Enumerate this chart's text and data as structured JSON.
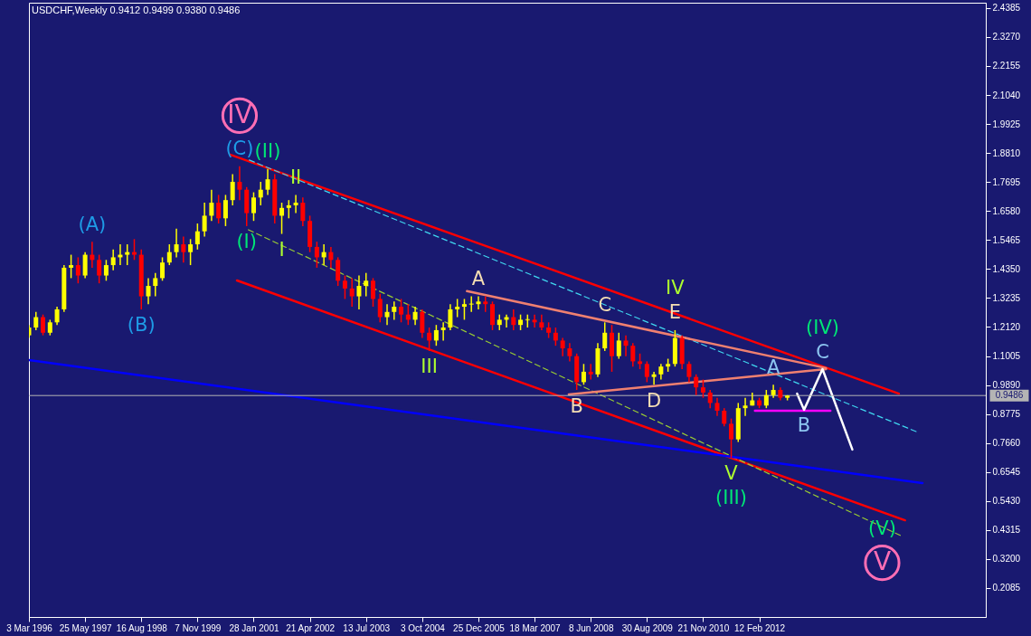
{
  "chart_data": {
    "type": "candlestick",
    "title": "USDCHF,Weekly 0.9412 0.9499 0.9380 0.9486",
    "xlim": [
      "1996-03-03",
      "2017-01-22"
    ],
    "xticks": [
      {
        "value": "1996-03-03",
        "label": "3 Mar 1996"
      },
      {
        "value": "1997-05-25",
        "label": "25 May 1997"
      },
      {
        "value": "1998-08-16",
        "label": "16 Aug 1998"
      },
      {
        "value": "1999-11-07",
        "label": "7 Nov 1999"
      },
      {
        "value": "2001-01-28",
        "label": "28 Jan 2001"
      },
      {
        "value": "2002-04-21",
        "label": "21 Apr 2002"
      },
      {
        "value": "2003-07-13",
        "label": "13 Jul 2003"
      },
      {
        "value": "2004-10-03",
        "label": "3 Oct 2004"
      },
      {
        "value": "2005-12-25",
        "label": "25 Dec 2005"
      },
      {
        "value": "2007-03-18",
        "label": "18 Mar 2007"
      },
      {
        "value": "2008-06-08",
        "label": "8 Jun 2008"
      },
      {
        "value": "2009-08-30",
        "label": "30 Aug 2009"
      },
      {
        "value": "2010-11-21",
        "label": "21 Nov 2010"
      },
      {
        "value": "2012-02-12",
        "label": "12 Feb 2012"
      }
    ],
    "ylim": [
      0.097,
      2.459
    ],
    "yticks": [
      2.4385,
      {
        "value": 2.327,
        "label": "2.3270"
      },
      2.2155,
      {
        "value": 2.104,
        "label": "2.1040"
      },
      1.9925,
      {
        "value": 1.881,
        "label": "1.8810"
      },
      1.7695,
      {
        "value": 1.658,
        "label": "1.6580"
      },
      1.5465,
      {
        "value": 1.435,
        "label": "1.4350"
      },
      1.3235,
      {
        "value": 1.212,
        "label": "1.2120"
      },
      1.1005,
      {
        "value": 0.989,
        "label": "0.9890"
      },
      0.8775,
      {
        "value": 0.766,
        "label": "0.7660"
      },
      0.6545,
      {
        "value": 0.543,
        "label": "0.5430"
      },
      0.4315,
      {
        "value": 0.32,
        "label": "0.3200"
      },
      0.2085
    ],
    "series": [
      {
        "x": [
          "1996-03-03",
          "1996-04-28",
          "1996-06-23",
          "1996-08-18",
          "1996-10-13",
          "1996-12-08",
          "1997-02-02",
          "1997-03-30",
          "1997-05-25",
          "1997-07-20",
          "1997-09-14",
          "1997-11-09",
          "1998-01-04",
          "1998-03-01",
          "1998-04-26",
          "1998-06-21",
          "1998-08-16",
          "1998-10-11",
          "1998-12-06",
          "1999-01-31",
          "1999-03-28",
          "1999-05-23",
          "1999-07-18",
          "1999-09-12",
          "1999-11-07",
          "2000-01-02",
          "2000-02-27",
          "2000-04-23",
          "2000-06-18",
          "2000-08-13",
          "2000-10-08",
          "2000-12-03",
          "2001-01-28",
          "2001-03-25",
          "2001-05-20",
          "2001-07-15",
          "2001-09-09",
          "2001-11-04",
          "2001-12-30",
          "2002-02-24",
          "2002-04-21",
          "2002-06-16",
          "2002-08-11",
          "2002-10-06",
          "2002-12-01",
          "2003-01-26",
          "2003-03-23",
          "2003-05-18",
          "2003-07-13",
          "2003-09-07",
          "2003-11-02",
          "2003-12-28",
          "2004-02-22",
          "2004-04-18",
          "2004-06-13",
          "2004-08-08",
          "2004-10-03",
          "2004-11-28",
          "2005-01-23",
          "2005-03-20",
          "2005-05-15",
          "2005-07-10",
          "2005-09-04",
          "2005-10-30",
          "2005-12-25",
          "2006-02-19",
          "2006-04-16",
          "2006-06-11",
          "2006-08-06",
          "2006-10-01",
          "2006-11-26",
          "2007-01-21",
          "2007-03-18",
          "2007-05-13",
          "2007-07-08",
          "2007-09-02",
          "2007-10-28",
          "2007-12-23",
          "2008-02-17",
          "2008-04-13",
          "2008-06-08",
          "2008-08-03",
          "2008-09-28",
          "2008-11-23",
          "2009-01-18",
          "2009-03-15",
          "2009-05-10",
          "2009-07-05",
          "2009-08-30",
          "2009-10-25",
          "2009-12-20",
          "2010-02-14",
          "2010-04-11",
          "2010-06-06",
          "2010-08-01",
          "2010-09-26",
          "2010-11-21",
          "2011-01-16",
          "2011-03-13",
          "2011-05-08",
          "2011-07-03",
          "2011-08-28",
          "2011-10-23",
          "2011-12-18",
          "2012-02-12",
          "2012-04-08",
          "2012-06-03",
          "2012-07-29",
          "2012-09-23"
        ],
        "ohlc": [
          [
            1.18,
            1.22,
            1.17,
            1.21
          ],
          [
            1.21,
            1.27,
            1.2,
            1.25
          ],
          [
            1.25,
            1.26,
            1.18,
            1.19
          ],
          [
            1.19,
            1.24,
            1.18,
            1.23
          ],
          [
            1.23,
            1.29,
            1.22,
            1.28
          ],
          [
            1.28,
            1.45,
            1.27,
            1.44
          ],
          [
            1.44,
            1.49,
            1.4,
            1.45
          ],
          [
            1.45,
            1.48,
            1.38,
            1.41
          ],
          [
            1.41,
            1.5,
            1.4,
            1.49
          ],
          [
            1.49,
            1.54,
            1.44,
            1.47
          ],
          [
            1.47,
            1.49,
            1.38,
            1.41
          ],
          [
            1.41,
            1.47,
            1.39,
            1.45
          ],
          [
            1.45,
            1.51,
            1.43,
            1.48
          ],
          [
            1.48,
            1.53,
            1.45,
            1.49
          ],
          [
            1.49,
            1.53,
            1.45,
            1.5
          ],
          [
            1.5,
            1.55,
            1.47,
            1.49
          ],
          [
            1.49,
            1.51,
            1.28,
            1.33
          ],
          [
            1.33,
            1.4,
            1.3,
            1.37
          ],
          [
            1.37,
            1.42,
            1.33,
            1.4
          ],
          [
            1.4,
            1.48,
            1.39,
            1.46
          ],
          [
            1.46,
            1.53,
            1.45,
            1.5
          ],
          [
            1.5,
            1.59,
            1.48,
            1.53
          ],
          [
            1.53,
            1.56,
            1.46,
            1.5
          ],
          [
            1.5,
            1.55,
            1.45,
            1.53
          ],
          [
            1.53,
            1.61,
            1.51,
            1.58
          ],
          [
            1.58,
            1.69,
            1.56,
            1.64
          ],
          [
            1.64,
            1.74,
            1.62,
            1.69
          ],
          [
            1.69,
            1.72,
            1.61,
            1.63
          ],
          [
            1.63,
            1.72,
            1.6,
            1.7
          ],
          [
            1.7,
            1.8,
            1.68,
            1.77
          ],
          [
            1.77,
            1.83,
            1.7,
            1.74
          ],
          [
            1.74,
            1.75,
            1.6,
            1.65
          ],
          [
            1.65,
            1.73,
            1.62,
            1.71
          ],
          [
            1.71,
            1.77,
            1.68,
            1.74
          ],
          [
            1.74,
            1.82,
            1.72,
            1.78
          ],
          [
            1.78,
            1.8,
            1.61,
            1.64
          ],
          [
            1.64,
            1.69,
            1.57,
            1.67
          ],
          [
            1.67,
            1.7,
            1.63,
            1.68
          ],
          [
            1.68,
            1.72,
            1.65,
            1.69
          ],
          [
            1.69,
            1.71,
            1.6,
            1.62
          ],
          [
            1.62,
            1.64,
            1.5,
            1.52
          ],
          [
            1.52,
            1.54,
            1.44,
            1.48
          ],
          [
            1.48,
            1.53,
            1.45,
            1.5
          ],
          [
            1.5,
            1.52,
            1.44,
            1.47
          ],
          [
            1.47,
            1.48,
            1.37,
            1.39
          ],
          [
            1.39,
            1.41,
            1.32,
            1.36
          ],
          [
            1.36,
            1.4,
            1.29,
            1.33
          ],
          [
            1.33,
            1.41,
            1.28,
            1.37
          ],
          [
            1.37,
            1.42,
            1.33,
            1.39
          ],
          [
            1.39,
            1.4,
            1.29,
            1.32
          ],
          [
            1.32,
            1.34,
            1.23,
            1.25
          ],
          [
            1.25,
            1.3,
            1.22,
            1.27
          ],
          [
            1.27,
            1.31,
            1.24,
            1.29
          ],
          [
            1.29,
            1.32,
            1.23,
            1.26
          ],
          [
            1.26,
            1.3,
            1.22,
            1.24
          ],
          [
            1.24,
            1.29,
            1.22,
            1.27
          ],
          [
            1.27,
            1.28,
            1.17,
            1.19
          ],
          [
            1.19,
            1.21,
            1.12,
            1.16
          ],
          [
            1.16,
            1.22,
            1.14,
            1.2
          ],
          [
            1.2,
            1.23,
            1.16,
            1.21
          ],
          [
            1.21,
            1.3,
            1.2,
            1.28
          ],
          [
            1.28,
            1.32,
            1.25,
            1.29
          ],
          [
            1.29,
            1.32,
            1.24,
            1.3
          ],
          [
            1.3,
            1.33,
            1.27,
            1.3
          ],
          [
            1.3,
            1.33,
            1.28,
            1.31
          ],
          [
            1.31,
            1.33,
            1.27,
            1.3
          ],
          [
            1.3,
            1.31,
            1.2,
            1.22
          ],
          [
            1.22,
            1.26,
            1.2,
            1.24
          ],
          [
            1.24,
            1.26,
            1.21,
            1.25
          ],
          [
            1.25,
            1.28,
            1.2,
            1.22
          ],
          [
            1.22,
            1.26,
            1.2,
            1.24
          ],
          [
            1.24,
            1.26,
            1.21,
            1.24
          ],
          [
            1.24,
            1.26,
            1.21,
            1.23
          ],
          [
            1.23,
            1.26,
            1.2,
            1.21
          ],
          [
            1.21,
            1.23,
            1.17,
            1.19
          ],
          [
            1.19,
            1.21,
            1.14,
            1.16
          ],
          [
            1.16,
            1.17,
            1.1,
            1.13
          ],
          [
            1.13,
            1.15,
            1.08,
            1.1
          ],
          [
            1.1,
            1.11,
            0.97,
            1.0
          ],
          [
            1.0,
            1.07,
            0.99,
            1.04
          ],
          [
            1.04,
            1.07,
            1.01,
            1.03
          ],
          [
            1.03,
            1.15,
            1.02,
            1.13
          ],
          [
            1.13,
            1.23,
            1.12,
            1.19
          ],
          [
            1.19,
            1.22,
            1.04,
            1.1
          ],
          [
            1.1,
            1.19,
            1.09,
            1.16
          ],
          [
            1.16,
            1.18,
            1.1,
            1.14
          ],
          [
            1.14,
            1.15,
            1.06,
            1.08
          ],
          [
            1.08,
            1.11,
            1.05,
            1.07
          ],
          [
            1.07,
            1.08,
            1.0,
            1.02
          ],
          [
            1.02,
            1.04,
            0.99,
            1.03
          ],
          [
            1.03,
            1.07,
            1.01,
            1.06
          ],
          [
            1.06,
            1.09,
            1.04,
            1.07
          ],
          [
            1.07,
            1.2,
            1.06,
            1.17
          ],
          [
            1.17,
            1.18,
            1.05,
            1.07
          ],
          [
            1.07,
            1.08,
            1.0,
            1.02
          ],
          [
            1.02,
            1.03,
            0.95,
            0.98
          ],
          [
            0.98,
            1.01,
            0.94,
            0.96
          ],
          [
            0.96,
            0.97,
            0.9,
            0.92
          ],
          [
            0.92,
            0.94,
            0.87,
            0.89
          ],
          [
            0.89,
            0.9,
            0.83,
            0.84
          ],
          [
            0.84,
            0.86,
            0.71,
            0.78
          ],
          [
            0.78,
            0.92,
            0.77,
            0.9
          ],
          [
            0.9,
            0.94,
            0.87,
            0.91
          ],
          [
            0.91,
            0.96,
            0.91,
            0.93
          ],
          [
            0.93,
            0.94,
            0.9,
            0.91
          ],
          [
            0.91,
            0.97,
            0.9,
            0.95
          ],
          [
            0.95,
            0.99,
            0.94,
            0.97
          ],
          [
            0.97,
            0.98,
            0.93,
            0.94
          ],
          [
            0.94,
            0.95,
            0.93,
            0.9486
          ]
        ],
        "colors": [
          "#ffff00",
          "#ffff00",
          "#ff0000",
          "#ffff00",
          "#ffff00",
          "#ffff00",
          "#ffff00",
          "#ff0000",
          "#ffff00",
          "#ff0000",
          "#ff0000",
          "#ffff00",
          "#ffff00",
          "#ffff00",
          "#ffff00",
          "#ff0000",
          "#ff0000",
          "#ffff00",
          "#ffff00",
          "#ffff00",
          "#ffff00",
          "#ffff00",
          "#ff0000",
          "#ffff00",
          "#ffff00",
          "#ffff00",
          "#ffff00",
          "#ff0000",
          "#ffff00",
          "#ffff00",
          "#ff0000",
          "#ff0000",
          "#ffff00",
          "#ffff00",
          "#ffff00",
          "#ff0000",
          "#ffff00",
          "#ffff00",
          "#ffff00",
          "#ff0000",
          "#ff0000",
          "#ff0000",
          "#ffff00",
          "#ff0000",
          "#ff0000",
          "#ff0000",
          "#ff0000",
          "#ffff00",
          "#ffff00",
          "#ff0000",
          "#ff0000",
          "#ffff00",
          "#ffff00",
          "#ff0000",
          "#ff0000",
          "#ffff00",
          "#ff0000",
          "#ff0000",
          "#ffff00",
          "#ffff00",
          "#ffff00",
          "#ffff00",
          "#ffff00",
          "#ffff00",
          "#ffff00",
          "#ff0000",
          "#ff0000",
          "#ffff00",
          "#ffff00",
          "#ff0000",
          "#ffff00",
          "#ffff00",
          "#ff0000",
          "#ff0000",
          "#ff0000",
          "#ff0000",
          "#ff0000",
          "#ff0000",
          "#ff0000",
          "#ffff00",
          "#ff0000",
          "#ffff00",
          "#ffff00",
          "#ff0000",
          "#ffff00",
          "#ff0000",
          "#ff0000",
          "#ff0000",
          "#ff0000",
          "#ffff00",
          "#ffff00",
          "#ffff00",
          "#ffff00",
          "#ff0000",
          "#ff0000",
          "#ff0000",
          "#ff0000",
          "#ff0000",
          "#ff0000",
          "#ff0000",
          "#ff0000",
          "#ffff00",
          "#ffff00",
          "#ffff00",
          "#ff0000",
          "#ffff00",
          "#ffff00",
          "#ff0000",
          "#ffff00"
        ]
      },
      {
        "type": "line",
        "x": [
          "2000-07-23",
          "2015-03-01"
        ],
        "values": [
          1.875,
          0.956
        ],
        "color": "#ff0000"
      },
      {
        "type": "line",
        "x": [
          "2000-09-17",
          "2015-04-19"
        ],
        "values": [
          1.391,
          0.469
        ],
        "color": "#ff0000"
      },
      {
        "type": "line",
        "x": [
          "2000-12-24",
          "2015-08-02"
        ],
        "values": [
          1.854,
          0.807
        ],
        "color": "#40d8f0",
        "line_style": "dashed"
      },
      {
        "type": "line",
        "x": [
          "2000-12-17",
          "2015-03-29"
        ],
        "values": [
          1.586,
          0.407
        ],
        "color": "#9acd32",
        "line_style": "dashed"
      },
      {
        "type": "line",
        "x": [
          "1996-03-03",
          "2015-09-06"
        ],
        "values": [
          1.085,
          0.612
        ],
        "color": "#0000ff"
      },
      {
        "type": "line",
        "x": [
          "2005-09-25",
          "2013-07-28"
        ],
        "values": [
          1.35,
          1.054
        ],
        "color": "#f08070"
      },
      {
        "type": "line",
        "x": [
          "2007-12-16",
          "2013-07-28"
        ],
        "values": [
          0.953,
          1.05
        ],
        "color": "#f08070"
      },
      {
        "type": "line",
        "x": [
          "2012-01-08",
          "2013-09-01"
        ],
        "values": [
          0.89,
          0.89
        ],
        "color": "#ff00ff"
      },
      {
        "type": "line",
        "x": [
          "2012-12-09",
          "2013-02-03",
          "2013-06-30",
          "2014-02-23"
        ],
        "values": [
          0.956,
          0.894,
          1.05,
          0.741
        ],
        "color": "#ffffff"
      }
    ],
    "ref_lines": [
      {
        "axis": "y",
        "value": 0.9486,
        "label": "0.9486",
        "color": "#b4b4b4"
      }
    ],
    "annotations": [
      {
        "text": "(C)",
        "x": "2000-10-08",
        "y": 1.83
      },
      {
        "text": "IV",
        "x": "2000-10-08",
        "y": 1.83
      },
      {
        "text": "(II)",
        "x": "2001-05-20",
        "y": 1.82
      },
      {
        "text": "II",
        "x": "2001-12-30",
        "y": 1.72
      },
      {
        "text": "(I)",
        "x": "2000-12-03",
        "y": 1.6
      },
      {
        "text": "I",
        "x": "2001-09-09",
        "y": 1.57
      },
      {
        "text": "(A)",
        "x": "1997-07-20",
        "y": 1.54
      },
      {
        "text": "(B)",
        "x": "1998-08-16",
        "y": 1.28
      },
      {
        "text": "III",
        "x": "2004-11-28",
        "y": 1.12
      },
      {
        "text": "A",
        "x": "2005-12-25",
        "y": 1.33
      },
      {
        "text": "C",
        "x": "2008-09-28",
        "y": 1.23
      },
      {
        "text": "E",
        "x": "2010-04-11",
        "y": 1.2
      },
      {
        "text": "IV",
        "x": "2010-04-11",
        "y": 1.2
      },
      {
        "text": "C",
        "x": "2013-06-30",
        "y": 1.05
      },
      {
        "text": "(IV)",
        "x": "2013-06-30",
        "y": 1.05
      },
      {
        "text": "A",
        "x": "2012-06-03",
        "y": 0.99
      },
      {
        "text": "B",
        "x": "2008-02-17",
        "y": 0.97
      },
      {
        "text": "D",
        "x": "2009-10-25",
        "y": 0.99
      },
      {
        "text": "B",
        "x": "2013-02-03",
        "y": 0.894
      },
      {
        "text": "V",
        "x": "2011-07-03",
        "y": 0.71
      },
      {
        "text": "(III)",
        "x": "2011-07-03",
        "y": 0.71
      },
      {
        "text": "(V)",
        "x": "2014-10-19",
        "y": 0.5
      },
      {
        "text": "V",
        "x": "2014-10-19",
        "y": 0.5
      }
    ]
  }
}
